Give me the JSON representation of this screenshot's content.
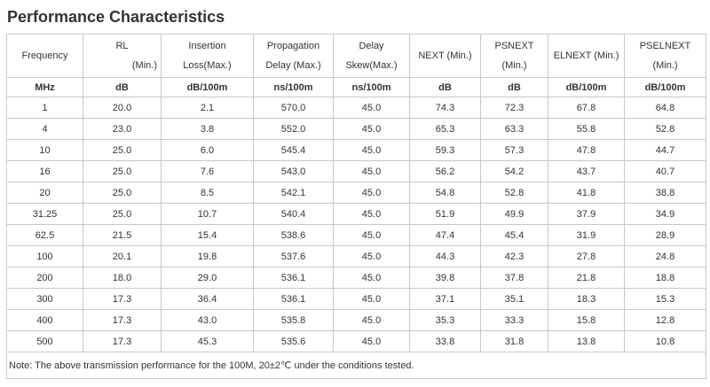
{
  "title": "Performance Characteristics",
  "table": {
    "header": [
      [
        "Frequency"
      ],
      [
        "RL",
        "(Min.)"
      ],
      [
        "Insertion",
        "Loss(Max.)"
      ],
      [
        "Propagation",
        "Delay (Max.)"
      ],
      [
        "Delay",
        "Skew(Max.)"
      ],
      [
        "NEXT (Min.)"
      ],
      [
        "PSNEXT",
        "(Min.)"
      ],
      [
        "ELNEXT (Min.)"
      ],
      [
        "PSELNEXT",
        "(Min.)"
      ]
    ],
    "units": [
      "MHz",
      "dB",
      "dB/100m",
      "ns/100m",
      "ns/100m",
      "dB",
      "dB",
      "dB/100m",
      "dB/100m"
    ],
    "rows": [
      [
        "1",
        "20.0",
        "2.1",
        "570.0",
        "45.0",
        "74.3",
        "72.3",
        "67.8",
        "64.8"
      ],
      [
        "4",
        "23.0",
        "3.8",
        "552.0",
        "45.0",
        "65.3",
        "63.3",
        "55.8",
        "52.8"
      ],
      [
        "10",
        "25.0",
        "6.0",
        "545.4",
        "45.0",
        "59.3",
        "57.3",
        "47.8",
        "44.7"
      ],
      [
        "16",
        "25.0",
        "7.6",
        "543.0",
        "45.0",
        "56.2",
        "54.2",
        "43.7",
        "40.7"
      ],
      [
        "20",
        "25.0",
        "8.5",
        "542.1",
        "45.0",
        "54.8",
        "52.8",
        "41.8",
        "38.8"
      ],
      [
        "31.25",
        "25.0",
        "10.7",
        "540.4",
        "45.0",
        "51.9",
        "49.9",
        "37.9",
        "34.9"
      ],
      [
        "62.5",
        "21.5",
        "15.4",
        "538.6",
        "45.0",
        "47.4",
        "45.4",
        "31.9",
        "28.9"
      ],
      [
        "100",
        "20.1",
        "19.8",
        "537.6",
        "45.0",
        "44.3",
        "42.3",
        "27.8",
        "24.8"
      ],
      [
        "200",
        "18.0",
        "29.0",
        "536.1",
        "45.0",
        "39.8",
        "37.8",
        "21.8",
        "18.8"
      ],
      [
        "300",
        "17.3",
        "36.4",
        "536.1",
        "45.0",
        "37.1",
        "35.1",
        "18.3",
        "15.3"
      ],
      [
        "400",
        "17.3",
        "43.0",
        "535.8",
        "45.0",
        "35.3",
        "33.3",
        "15.8",
        "12.8"
      ],
      [
        "500",
        "17.3",
        "45.3",
        "535.6",
        "45.0",
        "33.8",
        "31.8",
        "13.8",
        "10.8"
      ]
    ],
    "note": "Note: The above transmission performance for the 100M, 20±2℃ under the conditions tested."
  }
}
